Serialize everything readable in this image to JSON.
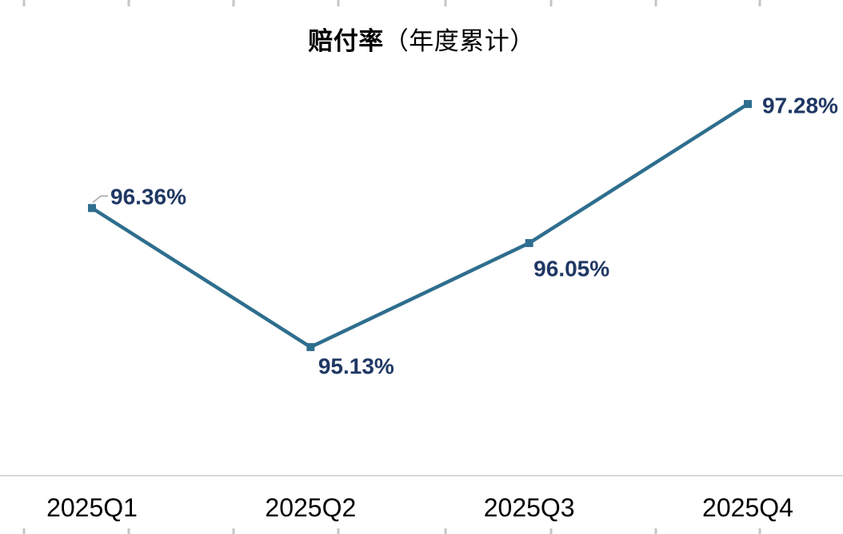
{
  "page": {
    "background": "#ffffff"
  },
  "title": {
    "main": "赔付率",
    "sub": "（年度累计）"
  },
  "chart_data": {
    "type": "line",
    "title": "赔付率（年度累计）",
    "categories": [
      "2025Q1",
      "2025Q2",
      "2025Q3",
      "2025Q4"
    ],
    "series": [
      {
        "name": "赔付率",
        "values": [
          96.36,
          95.13,
          96.05,
          97.28
        ]
      }
    ],
    "data_labels": [
      "96.36%",
      "95.13%",
      "96.05%",
      "97.28%"
    ],
    "ylim": [
      94.0,
      98.2
    ],
    "xlabel": "",
    "ylabel": "",
    "grid": false,
    "legend": "none",
    "marker": "square",
    "colors": {
      "line": "#2e6e8e",
      "marker": "#2e6e8e",
      "data_label": "#1f3864",
      "axis_line": "#d9d9d9",
      "category_label": "#000000",
      "leader_line": "#a6a6a6",
      "edge_tick": "#c6c6c6"
    }
  },
  "decor": {
    "edge_tick_xs": [
      30,
      161,
      292,
      423,
      557,
      689,
      820,
      950
    ]
  }
}
